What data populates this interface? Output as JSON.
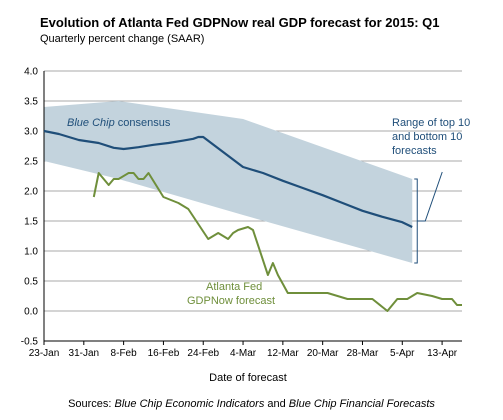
{
  "chart_data": {
    "type": "line",
    "title": "Evolution of Atlanta Fed GDPNow real GDP forecast for 2015: Q1",
    "subtitle": "Quarterly percent change (SAAR)",
    "xlabel": "Date of forecast",
    "ylabel": "",
    "ylim": [
      -0.5,
      4.0
    ],
    "yticks": [
      "4.0",
      "3.5",
      "3.0",
      "2.5",
      "2.0",
      "1.5",
      "1.0",
      "0.5",
      "0.0",
      "-0.5"
    ],
    "yticks_values": [
      4.0,
      3.5,
      3.0,
      2.5,
      2.0,
      1.5,
      1.0,
      0.5,
      0.0,
      -0.5
    ],
    "x_range_days": [
      0,
      84
    ],
    "xticks": [
      "23-Jan",
      "31-Jan",
      "8-Feb",
      "16-Feb",
      "24-Feb",
      "4-Mar",
      "12-Mar",
      "20-Mar",
      "28-Mar",
      "5-Apr",
      "13-Apr"
    ],
    "xticks_days": [
      0,
      8,
      16,
      24,
      32,
      40,
      48,
      56,
      64,
      72,
      80
    ],
    "grid": "horizontal",
    "band": {
      "label_lines": [
        "Range of top 10",
        "and bottom 10",
        "forecasts"
      ],
      "x": [
        0,
        15,
        40,
        74
      ],
      "upper": [
        3.4,
        3.5,
        3.2,
        2.2
      ],
      "lower": [
        2.5,
        2.2,
        1.6,
        0.8
      ]
    },
    "series": [
      {
        "name_label": "Blue Chip consensus",
        "name_italic": "Blue Chip",
        "name_rest": " consensus",
        "color": "#1f4e79",
        "x": [
          0,
          3,
          7,
          11,
          14,
          16,
          19,
          22,
          25,
          28,
          30,
          31,
          32,
          36,
          40,
          44,
          48,
          52,
          56,
          60,
          64,
          68,
          72,
          74
        ],
        "y": [
          3.0,
          2.95,
          2.85,
          2.8,
          2.72,
          2.7,
          2.73,
          2.77,
          2.8,
          2.84,
          2.87,
          2.9,
          2.9,
          2.65,
          2.4,
          2.3,
          2.17,
          2.05,
          1.93,
          1.8,
          1.67,
          1.57,
          1.48,
          1.4
        ]
      },
      {
        "name_lines": [
          "Atlanta Fed",
          "GDPNow forecast"
        ],
        "color": "#6f8f3b",
        "x": [
          10,
          11,
          13,
          14,
          15,
          17,
          18,
          19,
          20,
          21,
          24,
          27,
          29,
          33,
          35,
          37,
          38,
          39,
          41,
          42,
          45,
          46,
          47,
          48,
          49,
          51,
          52,
          54,
          57,
          61,
          62,
          63,
          66,
          69,
          71,
          73,
          75,
          78,
          80,
          82,
          83,
          84
        ],
        "y": [
          1.9,
          2.3,
          2.1,
          2.2,
          2.2,
          2.3,
          2.3,
          2.2,
          2.2,
          2.3,
          1.9,
          1.8,
          1.7,
          1.2,
          1.3,
          1.2,
          1.3,
          1.35,
          1.4,
          1.35,
          0.6,
          0.8,
          0.6,
          0.45,
          0.3,
          0.3,
          0.3,
          0.3,
          0.3,
          0.2,
          0.2,
          0.2,
          0.2,
          0.0,
          0.2,
          0.2,
          0.3,
          0.25,
          0.2,
          0.2,
          0.1,
          0.1
        ]
      }
    ]
  },
  "sources": {
    "prefix": "Sources: ",
    "source1": "Blue Chip Economic Indicators",
    "and": " and ",
    "source2": "Blue Chip Financial Forecasts"
  }
}
